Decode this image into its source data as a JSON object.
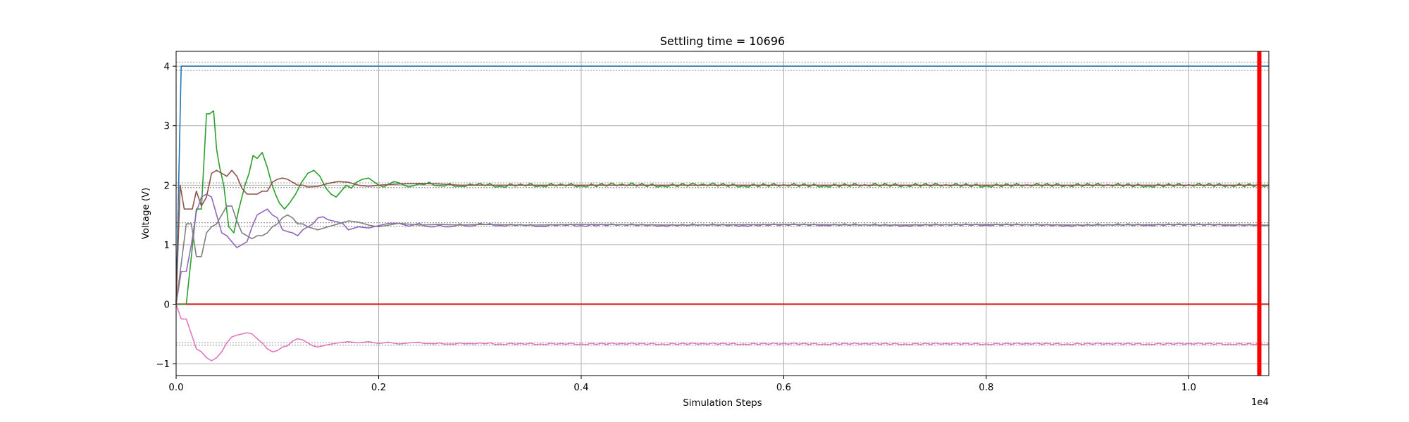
{
  "chart_data": {
    "type": "line",
    "title": "Settling time = 10696",
    "xlabel": "Simulation Steps",
    "ylabel": "Voltage (V)",
    "x_offset_text": "1e4",
    "xlim": [
      0,
      10790
    ],
    "ylim": [
      -1.2,
      4.25
    ],
    "x_ticks": [
      0,
      2000,
      4000,
      6000,
      8000,
      10000
    ],
    "x_tick_labels": [
      "0.0",
      "0.2",
      "0.4",
      "0.6",
      "0.8",
      "1.0"
    ],
    "y_ticks": [
      -1,
      0,
      1,
      2,
      3,
      4
    ],
    "y_tick_labels": [
      "−1",
      "0",
      "1",
      "2",
      "3",
      "4"
    ],
    "grid": true,
    "settling_time": 10696,
    "settling_marker_color": "#ff0000",
    "tolerance_band_color": "#999999",
    "series": [
      {
        "color": "#1f77b4",
        "x": [
          0,
          50,
          100,
          10790
        ],
        "y": [
          0,
          4.0,
          4.0,
          4.0
        ],
        "band": [
          3.93,
          4.07
        ]
      },
      {
        "color": "#d62728",
        "x": [
          0,
          10790
        ],
        "y": [
          0,
          0
        ]
      },
      {
        "color": "#2ca02c",
        "x": [
          0,
          100,
          150,
          200,
          250,
          300,
          330,
          370,
          400,
          430,
          470,
          520,
          570,
          620,
          680,
          720,
          760,
          800,
          850,
          900,
          940,
          980,
          1020,
          1070,
          1120,
          1180,
          1240,
          1300,
          1360,
          1420,
          1480,
          1530,
          1580,
          1630,
          1680,
          1730,
          1780,
          1840,
          1900,
          1960,
          2000,
          2050,
          2100,
          2150,
          2200,
          2250,
          2300,
          2400,
          2500,
          2600,
          2700,
          2800,
          2900,
          3000,
          3200,
          3400,
          3600,
          3800,
          4000,
          4400,
          4800,
          5200,
          5600,
          6000,
          6400,
          6800,
          7200,
          7600,
          8000,
          8400,
          8800,
          9200,
          9600,
          10000,
          10400,
          10790
        ],
        "y": [
          0,
          0,
          0.8,
          1.6,
          1.6,
          3.2,
          3.2,
          3.25,
          2.6,
          2.3,
          2.0,
          1.3,
          1.2,
          1.6,
          2.0,
          2.2,
          2.5,
          2.45,
          2.55,
          2.3,
          2.05,
          1.85,
          1.7,
          1.6,
          1.7,
          1.85,
          2.05,
          2.2,
          2.25,
          2.15,
          1.95,
          1.85,
          1.8,
          1.9,
          2.0,
          1.95,
          2.05,
          2.1,
          2.12,
          2.05,
          2.0,
          1.97,
          2.02,
          2.06,
          2.04,
          2.0,
          1.97,
          2.02,
          2.05,
          1.99,
          2.03,
          1.98,
          2.02,
          2.03,
          1.98,
          2.02,
          1.99,
          2.02,
          1.99,
          2.02,
          1.99,
          2.02,
          1.99,
          2.01,
          1.99,
          2.01,
          2.0,
          2.01,
          1.99,
          2.01,
          2.0,
          2.01,
          1.99,
          2.01,
          2.0,
          2.0
        ],
        "band": [
          1.96,
          2.04
        ],
        "ripple": 0.025
      },
      {
        "color": "#8c564b",
        "x": [
          0,
          40,
          80,
          120,
          160,
          200,
          250,
          300,
          350,
          400,
          450,
          500,
          550,
          600,
          650,
          700,
          750,
          800,
          850,
          900,
          950,
          1000,
          1050,
          1100,
          1150,
          1200,
          1250,
          1300,
          1400,
          1500,
          1600,
          1700,
          1800,
          1900,
          2000,
          2200,
          2400,
          2600,
          2800,
          3000,
          3500,
          4000,
          5000,
          6000,
          7000,
          8000,
          9000,
          10000,
          10790
        ],
        "y": [
          0,
          2.0,
          1.6,
          1.6,
          1.6,
          1.9,
          1.65,
          1.8,
          2.2,
          2.25,
          2.2,
          2.15,
          2.25,
          2.15,
          1.95,
          1.85,
          1.85,
          1.85,
          1.9,
          1.9,
          2.05,
          2.1,
          2.12,
          2.1,
          2.05,
          2.0,
          2.0,
          1.97,
          1.98,
          2.03,
          2.06,
          2.05,
          2.0,
          1.98,
          2.0,
          2.02,
          2.03,
          2.02,
          2.0,
          2.0,
          2.0,
          2.0,
          2.0,
          2.0,
          2.0,
          2.0,
          2.0,
          2.0,
          2.0
        ],
        "band": [
          1.96,
          2.04
        ]
      },
      {
        "color": "#9467bd",
        "x": [
          0,
          50,
          100,
          150,
          200,
          250,
          300,
          350,
          400,
          450,
          500,
          550,
          600,
          650,
          700,
          750,
          800,
          850,
          900,
          950,
          1000,
          1050,
          1100,
          1150,
          1200,
          1250,
          1300,
          1350,
          1400,
          1450,
          1500,
          1550,
          1600,
          1650,
          1700,
          1800,
          1900,
          2000,
          2100,
          2200,
          2300,
          2400,
          2500,
          2600,
          2700,
          2800,
          2900,
          3000,
          3200,
          3400,
          3600,
          3800,
          4000,
          4400,
          4800,
          5200,
          5600,
          6000,
          6400,
          6800,
          7200,
          7600,
          8000,
          8400,
          8800,
          9200,
          9600,
          10000,
          10400,
          10790
        ],
        "y": [
          0,
          0.55,
          0.55,
          1.0,
          1.55,
          1.8,
          1.85,
          1.8,
          1.5,
          1.2,
          1.15,
          1.05,
          0.95,
          1.0,
          1.05,
          1.3,
          1.5,
          1.55,
          1.6,
          1.5,
          1.45,
          1.25,
          1.22,
          1.2,
          1.15,
          1.25,
          1.3,
          1.35,
          1.45,
          1.47,
          1.42,
          1.4,
          1.38,
          1.35,
          1.25,
          1.3,
          1.28,
          1.32,
          1.36,
          1.36,
          1.31,
          1.36,
          1.3,
          1.33,
          1.3,
          1.35,
          1.31,
          1.36,
          1.32,
          1.34,
          1.31,
          1.34,
          1.32,
          1.34,
          1.32,
          1.34,
          1.32,
          1.34,
          1.33,
          1.34,
          1.32,
          1.34,
          1.33,
          1.34,
          1.32,
          1.34,
          1.33,
          1.34,
          1.33,
          1.33
        ],
        "band": [
          1.31,
          1.37
        ],
        "ripple": 0.015
      },
      {
        "color": "#7f7f7f",
        "x": [
          0,
          100,
          150,
          200,
          250,
          300,
          350,
          400,
          450,
          500,
          550,
          600,
          650,
          700,
          750,
          800,
          850,
          900,
          950,
          1000,
          1050,
          1100,
          1150,
          1200,
          1250,
          1300,
          1400,
          1500,
          1600,
          1700,
          1800,
          1900,
          2000,
          2200,
          2400,
          2600,
          2800,
          3000,
          3500,
          4000,
          5000,
          6000,
          7000,
          8000,
          9000,
          10000,
          10790
        ],
        "y": [
          0,
          1.35,
          1.35,
          0.8,
          0.8,
          1.2,
          1.3,
          1.35,
          1.5,
          1.65,
          1.65,
          1.4,
          1.2,
          1.15,
          1.1,
          1.15,
          1.15,
          1.2,
          1.3,
          1.35,
          1.45,
          1.5,
          1.45,
          1.35,
          1.35,
          1.3,
          1.25,
          1.3,
          1.35,
          1.4,
          1.38,
          1.33,
          1.3,
          1.36,
          1.33,
          1.34,
          1.33,
          1.34,
          1.33,
          1.34,
          1.33,
          1.34,
          1.33,
          1.34,
          1.33,
          1.34,
          1.33
        ],
        "band": [
          1.31,
          1.37
        ]
      },
      {
        "color": "#e377c2",
        "x": [
          0,
          50,
          100,
          150,
          200,
          250,
          300,
          350,
          400,
          450,
          500,
          550,
          600,
          650,
          700,
          750,
          800,
          850,
          900,
          950,
          1000,
          1050,
          1100,
          1150,
          1200,
          1250,
          1300,
          1350,
          1400,
          1450,
          1500,
          1600,
          1700,
          1800,
          1900,
          2000,
          2100,
          2200,
          2300,
          2400,
          2500,
          2600,
          2700,
          2800,
          2900,
          3000,
          3200,
          3400,
          3600,
          3800,
          4000,
          4400,
          4800,
          5200,
          5600,
          6000,
          6400,
          6800,
          7200,
          7600,
          8000,
          8400,
          8800,
          9200,
          9600,
          10000,
          10400,
          10790
        ],
        "y": [
          0,
          -0.25,
          -0.25,
          -0.5,
          -0.75,
          -0.8,
          -0.9,
          -0.95,
          -0.9,
          -0.8,
          -0.65,
          -0.55,
          -0.52,
          -0.5,
          -0.48,
          -0.5,
          -0.58,
          -0.65,
          -0.75,
          -0.8,
          -0.78,
          -0.72,
          -0.7,
          -0.62,
          -0.58,
          -0.6,
          -0.65,
          -0.7,
          -0.72,
          -0.7,
          -0.68,
          -0.65,
          -0.63,
          -0.65,
          -0.63,
          -0.66,
          -0.64,
          -0.67,
          -0.65,
          -0.64,
          -0.66,
          -0.65,
          -0.67,
          -0.65,
          -0.66,
          -0.65,
          -0.67,
          -0.66,
          -0.67,
          -0.66,
          -0.67,
          -0.66,
          -0.67,
          -0.66,
          -0.67,
          -0.66,
          -0.67,
          -0.66,
          -0.67,
          -0.66,
          -0.67,
          -0.66,
          -0.67,
          -0.66,
          -0.67,
          -0.66,
          -0.67,
          -0.67
        ],
        "band": [
          -0.69,
          -0.65
        ],
        "ripple": 0.012
      }
    ]
  }
}
